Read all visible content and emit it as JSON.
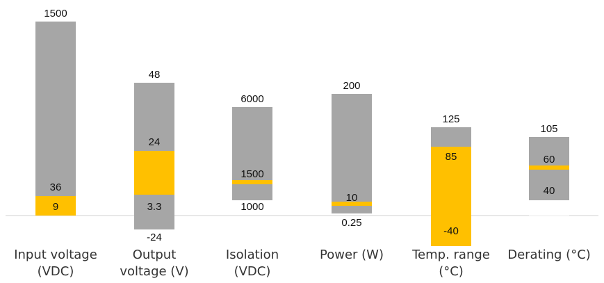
{
  "chart_data": {
    "type": "bar",
    "title": "",
    "colors": {
      "range": "#a6a6a6",
      "highlight": "#ffc000",
      "axis": "#d9d9d9"
    },
    "categories": [
      {
        "name": "input-voltage",
        "label_lines": [
          "Input voltage",
          "(VDC)"
        ],
        "range": [
          9,
          1500
        ],
        "highlight": [
          9,
          36
        ],
        "labels": {
          "top": "1500",
          "mid": "36",
          "low": "9"
        }
      },
      {
        "name": "output-voltage",
        "label_lines": [
          "Output",
          "voltage (V)"
        ],
        "range": [
          -24,
          48
        ],
        "highlight": [
          3.3,
          24
        ],
        "labels": {
          "top": "48",
          "mid": "24",
          "low": "3.3",
          "bottom": "-24"
        }
      },
      {
        "name": "isolation",
        "label_lines": [
          "Isolation",
          "(VDC)"
        ],
        "range": [
          1000,
          6000
        ],
        "highlight": [
          1500,
          1500
        ],
        "labels": {
          "top": "6000",
          "mid": "1500",
          "bottom": "1000"
        }
      },
      {
        "name": "power",
        "label_lines": [
          "Power (W)"
        ],
        "range": [
          0.25,
          200
        ],
        "highlight": [
          10,
          10
        ],
        "labels": {
          "top": "200",
          "mid": "10",
          "bottom": "0.25"
        }
      },
      {
        "name": "temp-range",
        "label_lines": [
          "Temp. range",
          "(°C)"
        ],
        "range": [
          -40,
          125
        ],
        "highlight": [
          -40,
          85
        ],
        "labels": {
          "top": "125",
          "mid": "85",
          "low": "-40"
        }
      },
      {
        "name": "derating",
        "label_lines": [
          "Derating (°C)"
        ],
        "range": [
          40,
          105
        ],
        "highlight": [
          60,
          60
        ],
        "labels": {
          "top": "105",
          "mid": "60",
          "low": "40"
        }
      }
    ]
  }
}
